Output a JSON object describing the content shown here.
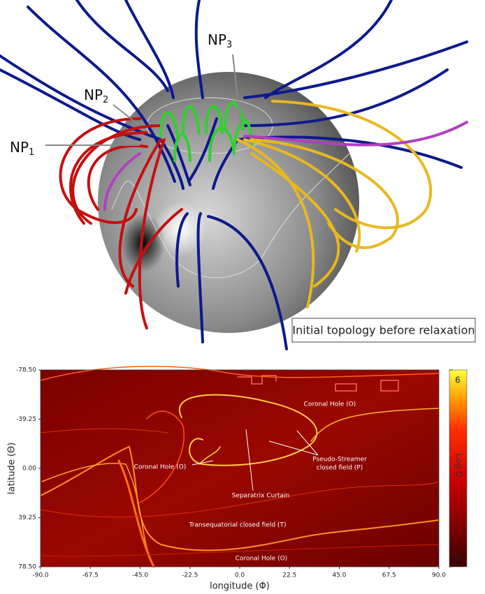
{
  "top_panel": {
    "null_points": [
      {
        "name": "NP",
        "sub": "1"
      },
      {
        "name": "NP",
        "sub": "2"
      },
      {
        "name": "NP",
        "sub": "3"
      }
    ],
    "caption": "Initial topology before relaxation"
  },
  "chart_data": {
    "type": "heatmap",
    "x_label": "longitude (Φ)",
    "y_label": "latitude (Θ)",
    "xlim": [
      -90,
      90
    ],
    "xticks": [
      {
        "value": -90,
        "label": "-90.0"
      },
      -67.5,
      {
        "value": -45,
        "label": "-45.0"
      },
      -22.5,
      {
        "value": 0,
        "label": "0.0"
      },
      22.5,
      {
        "value": 45,
        "label": "45.0"
      },
      67.5,
      {
        "value": 90,
        "label": "90.0"
      }
    ],
    "ylim": [
      -78.5,
      78.5
    ],
    "y_inverted": true,
    "yticks": [
      {
        "value": -78.5,
        "label": "-78.50"
      },
      -39.25,
      {
        "value": 0,
        "label": "0.00"
      },
      39.25,
      {
        "value": 78.5,
        "label": "78.50"
      }
    ],
    "colorbar": {
      "label": "Log Q",
      "lim": [
        0,
        6
      ],
      "ticks": [
        0,
        6
      ]
    },
    "annotations": [
      "Coronal Hole (O)",
      "Coronal Hole (O)",
      "Coronal Hole (O)",
      "Pseudo-Streamer",
      "closed field (P)",
      "Separatrix Curtain",
      "Transequatorial closed field (T)"
    ]
  }
}
